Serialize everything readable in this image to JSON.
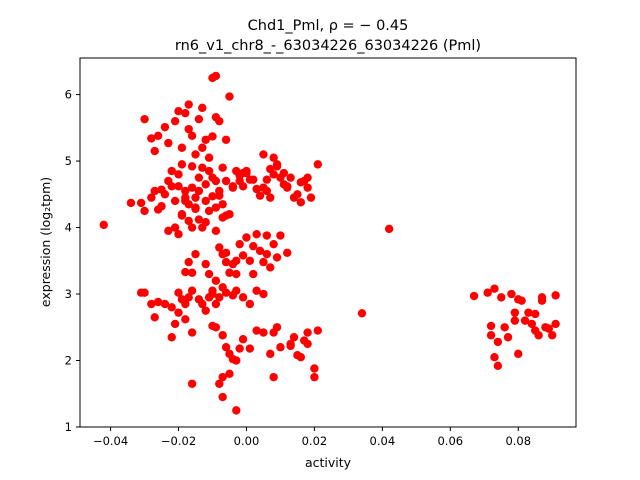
{
  "chart_data": {
    "type": "scatter",
    "title": "Chd1_Pml, ρ = − 0.45",
    "subtitle": "rn6_v1_chr8_-_63034226_63034226 (Pml)",
    "xlabel": "activity",
    "ylabel": "expression (log₂tpm)",
    "xlim": [
      -0.049,
      0.097
    ],
    "ylim": [
      1.0,
      6.55
    ],
    "xticks": [
      -0.04,
      -0.02,
      0.0,
      0.02,
      0.04,
      0.06,
      0.08
    ],
    "xtick_labels": [
      "−0.04",
      "−0.02",
      "0.00",
      "0.02",
      "0.04",
      "0.06",
      "0.08"
    ],
    "yticks": [
      1,
      2,
      3,
      4,
      5,
      6
    ],
    "ytick_labels": [
      "1",
      "2",
      "3",
      "4",
      "5",
      "6"
    ],
    "grid": false,
    "marker_color": "#ff0000",
    "points": [
      [
        -0.042,
        4.04
      ],
      [
        -0.034,
        4.37
      ],
      [
        -0.03,
        3.02
      ],
      [
        -0.03,
        5.63
      ],
      [
        -0.028,
        5.34
      ],
      [
        -0.027,
        5.15
      ],
      [
        -0.026,
        5.38
      ],
      [
        -0.025,
        4.57
      ],
      [
        -0.024,
        5.51
      ],
      [
        -0.023,
        5.27
      ],
      [
        -0.022,
        4.85
      ],
      [
        -0.021,
        5.6
      ],
      [
        -0.02,
        5.75
      ],
      [
        -0.019,
        5.2
      ],
      [
        -0.018,
        5.72
      ],
      [
        -0.017,
        5.48
      ],
      [
        -0.016,
        5.38
      ],
      [
        -0.015,
        5.1
      ],
      [
        -0.014,
        5.63
      ],
      [
        -0.013,
        5.2
      ],
      [
        -0.012,
        5.32
      ],
      [
        -0.011,
        5.05
      ],
      [
        -0.01,
        5.37
      ],
      [
        -0.009,
        5.66
      ],
      [
        -0.008,
        5.6
      ],
      [
        -0.007,
        4.9
      ],
      [
        -0.006,
        5.32
      ],
      [
        -0.013,
        5.8
      ],
      [
        -0.01,
        6.25
      ],
      [
        -0.009,
        6.28
      ],
      [
        -0.005,
        5.97
      ],
      [
        -0.017,
        5.85
      ],
      [
        -0.031,
        4.37
      ],
      [
        -0.03,
        4.25
      ],
      [
        -0.028,
        4.45
      ],
      [
        -0.027,
        4.55
      ],
      [
        -0.026,
        4.27
      ],
      [
        -0.025,
        4.32
      ],
      [
        -0.024,
        4.5
      ],
      [
        -0.023,
        4.7
      ],
      [
        -0.022,
        4.62
      ],
      [
        -0.021,
        4.4
      ],
      [
        -0.02,
        4.8
      ],
      [
        -0.019,
        4.18
      ],
      [
        -0.018,
        4.45
      ],
      [
        -0.017,
        4.35
      ],
      [
        -0.016,
        4.92
      ],
      [
        -0.015,
        4.28
      ],
      [
        -0.014,
        4.12
      ],
      [
        -0.013,
        4.0
      ],
      [
        -0.012,
        4.08
      ],
      [
        -0.011,
        4.25
      ],
      [
        -0.01,
        4.47
      ],
      [
        -0.009,
        4.7
      ],
      [
        -0.008,
        4.55
      ],
      [
        -0.007,
        4.35
      ],
      [
        -0.006,
        4.18
      ],
      [
        -0.005,
        4.2
      ],
      [
        -0.004,
        4.6
      ],
      [
        -0.003,
        4.85
      ],
      [
        -0.002,
        4.78
      ],
      [
        -0.001,
        4.62
      ],
      [
        0.0,
        4.82
      ],
      [
        0.001,
        4.72
      ],
      [
        -0.021,
        4.0
      ],
      [
        -0.02,
        3.9
      ],
      [
        -0.019,
        4.2
      ],
      [
        -0.018,
        4.55
      ],
      [
        -0.017,
        4.1
      ],
      [
        -0.016,
        4.0
      ],
      [
        -0.015,
        4.3
      ],
      [
        -0.014,
        4.75
      ],
      [
        -0.013,
        4.9
      ],
      [
        -0.012,
        4.65
      ],
      [
        -0.011,
        4.85
      ],
      [
        -0.01,
        4.75
      ],
      [
        -0.009,
        4.3
      ],
      [
        -0.008,
        4.48
      ],
      [
        -0.007,
        4.15
      ],
      [
        -0.006,
        4.7
      ],
      [
        -0.023,
        3.95
      ],
      [
        -0.02,
        4.62
      ],
      [
        -0.019,
        4.95
      ],
      [
        -0.018,
        4.4
      ],
      [
        -0.016,
        4.6
      ],
      [
        -0.015,
        4.45
      ],
      [
        -0.014,
        4.55
      ],
      [
        -0.012,
        4.4
      ],
      [
        -0.004,
        4.62
      ],
      [
        -0.002,
        4.7
      ],
      [
        0.0,
        4.85
      ],
      [
        0.002,
        4.72
      ],
      [
        0.003,
        4.58
      ],
      [
        0.004,
        4.48
      ],
      [
        0.005,
        4.6
      ],
      [
        0.006,
        4.72
      ],
      [
        0.007,
        4.88
      ],
      [
        0.008,
        4.8
      ],
      [
        0.009,
        4.95
      ],
      [
        0.01,
        4.75
      ],
      [
        0.011,
        4.65
      ],
      [
        0.012,
        4.6
      ],
      [
        0.013,
        4.75
      ],
      [
        0.014,
        4.45
      ],
      [
        0.015,
        4.5
      ],
      [
        0.016,
        4.38
      ],
      [
        0.017,
        4.7
      ],
      [
        0.018,
        4.6
      ],
      [
        0.019,
        4.45
      ],
      [
        0.021,
        4.95
      ],
      [
        0.005,
        5.1
      ],
      [
        0.008,
        5.05
      ],
      [
        0.009,
        4.92
      ],
      [
        0.011,
        4.82
      ],
      [
        0.006,
        4.55
      ],
      [
        0.007,
        4.45
      ],
      [
        0.012,
        4.62
      ],
      [
        0.018,
        4.75
      ],
      [
        0.016,
        4.68
      ],
      [
        -0.001,
        4.82
      ],
      [
        -0.018,
        3.33
      ],
      [
        -0.017,
        3.48
      ],
      [
        -0.016,
        3.32
      ],
      [
        -0.015,
        3.6
      ],
      [
        -0.012,
        3.45
      ],
      [
        -0.011,
        3.3
      ],
      [
        -0.01,
        3.0
      ],
      [
        -0.009,
        3.2
      ],
      [
        -0.008,
        3.7
      ],
      [
        -0.007,
        3.6
      ],
      [
        -0.006,
        3.48
      ],
      [
        -0.005,
        3.32
      ],
      [
        -0.004,
        3.45
      ],
      [
        -0.003,
        3.3
      ],
      [
        -0.002,
        3.75
      ],
      [
        -0.001,
        3.58
      ],
      [
        0.0,
        3.85
      ],
      [
        0.001,
        3.5
      ],
      [
        0.002,
        3.3
      ],
      [
        0.003,
        3.9
      ],
      [
        0.004,
        3.65
      ],
      [
        0.005,
        3.48
      ],
      [
        0.006,
        3.6
      ],
      [
        0.007,
        3.4
      ],
      [
        0.008,
        3.75
      ],
      [
        0.009,
        3.55
      ],
      [
        0.01,
        3.88
      ],
      [
        0.012,
        3.62
      ],
      [
        -0.006,
        3.62
      ],
      [
        -0.003,
        3.5
      ],
      [
        0.002,
        3.72
      ],
      [
        0.006,
        3.88
      ],
      [
        -0.009,
        3.95
      ],
      [
        -0.02,
        3.02
      ],
      [
        -0.019,
        2.92
      ],
      [
        -0.018,
        2.85
      ],
      [
        -0.017,
        2.95
      ],
      [
        -0.016,
        3.05
      ],
      [
        -0.014,
        2.92
      ],
      [
        -0.013,
        2.85
      ],
      [
        -0.012,
        2.75
      ],
      [
        -0.011,
        2.95
      ],
      [
        -0.01,
        3.05
      ],
      [
        -0.009,
        2.85
      ],
      [
        -0.008,
        2.95
      ],
      [
        -0.007,
        3.1
      ],
      [
        -0.006,
        3.02
      ],
      [
        -0.004,
        2.98
      ],
      [
        -0.003,
        3.05
      ],
      [
        -0.001,
        2.95
      ],
      [
        0.001,
        2.85
      ],
      [
        0.003,
        3.05
      ],
      [
        0.005,
        3.0
      ],
      [
        -0.028,
        2.85
      ],
      [
        -0.026,
        2.88
      ],
      [
        -0.024,
        2.85
      ],
      [
        -0.022,
        2.8
      ],
      [
        -0.02,
        2.72
      ],
      [
        -0.018,
        2.62
      ],
      [
        -0.016,
        2.42
      ],
      [
        -0.021,
        2.55
      ],
      [
        -0.022,
        2.35
      ],
      [
        -0.027,
        2.65
      ],
      [
        -0.031,
        3.02
      ],
      [
        -0.01,
        2.52
      ],
      [
        -0.009,
        2.5
      ],
      [
        -0.007,
        2.38
      ],
      [
        -0.006,
        2.2
      ],
      [
        -0.005,
        2.1
      ],
      [
        -0.004,
        2.02
      ],
      [
        -0.003,
        2.0
      ],
      [
        -0.002,
        2.18
      ],
      [
        -0.001,
        2.32
      ],
      [
        0.001,
        2.18
      ],
      [
        0.003,
        2.45
      ],
      [
        0.005,
        2.42
      ],
      [
        0.007,
        2.1
      ],
      [
        0.008,
        2.42
      ],
      [
        0.009,
        2.5
      ],
      [
        0.01,
        2.2
      ],
      [
        0.013,
        2.25
      ],
      [
        0.014,
        2.35
      ],
      [
        0.016,
        2.05
      ],
      [
        0.017,
        2.3
      ],
      [
        0.018,
        2.42
      ],
      [
        0.02,
        1.88
      ],
      [
        0.021,
        2.45
      ],
      [
        -0.007,
        1.75
      ],
      [
        -0.008,
        1.65
      ],
      [
        -0.007,
        1.45
      ],
      [
        -0.005,
        1.8
      ],
      [
        -0.016,
        1.65
      ],
      [
        -0.003,
        1.25
      ],
      [
        0.008,
        1.75
      ],
      [
        0.013,
        2.22
      ],
      [
        0.015,
        2.08
      ],
      [
        0.018,
        2.25
      ],
      [
        0.02,
        1.75
      ],
      [
        0.034,
        2.71
      ],
      [
        0.042,
        3.98
      ],
      [
        0.067,
        2.97
      ],
      [
        0.071,
        3.02
      ],
      [
        0.072,
        2.52
      ],
      [
        0.072,
        2.38
      ],
      [
        0.073,
        2.05
      ],
      [
        0.073,
        3.08
      ],
      [
        0.074,
        2.28
      ],
      [
        0.074,
        1.92
      ],
      [
        0.075,
        2.95
      ],
      [
        0.076,
        2.5
      ],
      [
        0.077,
        2.35
      ],
      [
        0.078,
        3.0
      ],
      [
        0.079,
        2.6
      ],
      [
        0.079,
        2.72
      ],
      [
        0.08,
        2.92
      ],
      [
        0.08,
        2.1
      ],
      [
        0.081,
        2.9
      ],
      [
        0.082,
        2.6
      ],
      [
        0.083,
        2.72
      ],
      [
        0.084,
        2.55
      ],
      [
        0.085,
        2.7
      ],
      [
        0.085,
        2.45
      ],
      [
        0.086,
        2.38
      ],
      [
        0.087,
        2.9
      ],
      [
        0.087,
        2.95
      ],
      [
        0.088,
        2.5
      ],
      [
        0.089,
        2.48
      ],
      [
        0.09,
        2.38
      ],
      [
        0.091,
        2.55
      ],
      [
        0.091,
        2.98
      ]
    ]
  }
}
